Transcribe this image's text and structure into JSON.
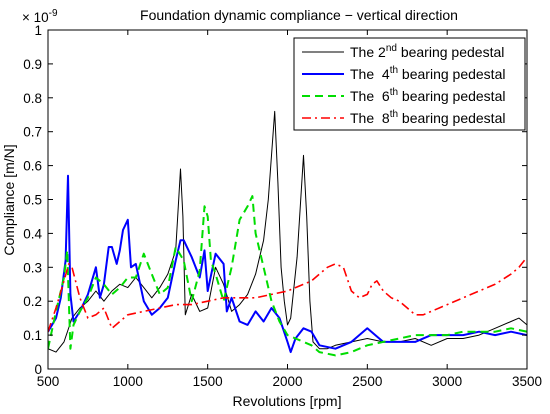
{
  "chart_data": {
    "type": "line",
    "title": "Foundation dynamic compliance − vertical direction",
    "xlabel": "Revolutions [rpm]",
    "ylabel": "Compliance [m/N]",
    "y_exponent": "× 10",
    "y_exponent_power": "-9",
    "xlim": [
      500,
      3500
    ],
    "ylim": [
      0,
      1
    ],
    "xticks": [
      "500",
      "1000",
      "1500",
      "2000",
      "2500",
      "3000",
      "3500"
    ],
    "yticks": [
      "0",
      "0.1",
      "0.2",
      "0.3",
      "0.4",
      "0.5",
      "0.6",
      "0.7",
      "0.8",
      "0.9",
      "1"
    ],
    "grid": false,
    "legend_position": "top-right",
    "legend": [
      {
        "prefix": "The 2",
        "sup": "nd",
        "suffix": " bearing pedestal"
      },
      {
        "prefix": "The  4",
        "sup": "th",
        "suffix": " bearing pedestal"
      },
      {
        "prefix": "The  6",
        "sup": "th",
        "suffix": " bearing pedestal"
      },
      {
        "prefix": "The  8",
        "sup": "th",
        "suffix": " bearing pedestal"
      }
    ],
    "series": [
      {
        "name": "The 2nd bearing pedestal",
        "color": "#000000",
        "dash": "solid",
        "width": 1,
        "x": [
          500,
          550,
          600,
          650,
          700,
          750,
          800,
          850,
          900,
          950,
          1000,
          1050,
          1100,
          1150,
          1200,
          1250,
          1300,
          1330,
          1345,
          1360,
          1400,
          1450,
          1500,
          1550,
          1600,
          1650,
          1700,
          1750,
          1800,
          1850,
          1880,
          1900,
          1920,
          1940,
          1960,
          1980,
          2000,
          2020,
          2060,
          2080,
          2100,
          2120,
          2140,
          2160,
          2200,
          2250,
          2300,
          2400,
          2500,
          2600,
          2700,
          2800,
          2900,
          3000,
          3100,
          3200,
          3300,
          3400,
          3450,
          3500
        ],
        "y": [
          0.06,
          0.05,
          0.08,
          0.15,
          0.18,
          0.2,
          0.23,
          0.2,
          0.23,
          0.25,
          0.24,
          0.27,
          0.24,
          0.21,
          0.24,
          0.28,
          0.35,
          0.59,
          0.45,
          0.16,
          0.22,
          0.17,
          0.18,
          0.3,
          0.25,
          0.17,
          0.19,
          0.22,
          0.28,
          0.38,
          0.5,
          0.63,
          0.76,
          0.55,
          0.3,
          0.2,
          0.13,
          0.15,
          0.33,
          0.48,
          0.63,
          0.45,
          0.2,
          0.08,
          0.06,
          0.06,
          0.07,
          0.08,
          0.09,
          0.08,
          0.08,
          0.09,
          0.07,
          0.09,
          0.09,
          0.1,
          0.12,
          0.14,
          0.15,
          0.13
        ]
      },
      {
        "name": "The 4th bearing pedestal",
        "color": "#0000ff",
        "dash": "solid",
        "width": 2,
        "x": [
          500,
          550,
          580,
          610,
          625,
          640,
          660,
          700,
          750,
          800,
          825,
          850,
          880,
          900,
          930,
          950,
          970,
          1000,
          1020,
          1050,
          1100,
          1150,
          1200,
          1250,
          1300,
          1330,
          1350,
          1400,
          1450,
          1480,
          1500,
          1550,
          1600,
          1620,
          1650,
          1700,
          1750,
          1800,
          1850,
          1900,
          1950,
          2000,
          2020,
          2050,
          2100,
          2150,
          2200,
          2300,
          2400,
          2500,
          2550,
          2600,
          2700,
          2800,
          2900,
          3000,
          3100,
          3200,
          3300,
          3400,
          3500
        ],
        "y": [
          0.11,
          0.15,
          0.21,
          0.32,
          0.57,
          0.22,
          0.14,
          0.17,
          0.22,
          0.3,
          0.21,
          0.25,
          0.36,
          0.36,
          0.31,
          0.35,
          0.41,
          0.44,
          0.3,
          0.31,
          0.2,
          0.16,
          0.18,
          0.21,
          0.32,
          0.38,
          0.38,
          0.33,
          0.27,
          0.35,
          0.23,
          0.34,
          0.31,
          0.17,
          0.21,
          0.14,
          0.13,
          0.17,
          0.14,
          0.18,
          0.15,
          0.08,
          0.05,
          0.09,
          0.12,
          0.11,
          0.07,
          0.06,
          0.08,
          0.12,
          0.1,
          0.08,
          0.08,
          0.08,
          0.1,
          0.1,
          0.1,
          0.11,
          0.1,
          0.11,
          0.1
        ]
      },
      {
        "name": "The 6th bearing pedestal",
        "color": "#00dd00",
        "dash": "dashed",
        "width": 2,
        "x": [
          500,
          550,
          600,
          620,
          640,
          660,
          700,
          750,
          800,
          850,
          900,
          950,
          1000,
          1050,
          1100,
          1150,
          1200,
          1250,
          1300,
          1350,
          1400,
          1450,
          1480,
          1500,
          1520,
          1550,
          1600,
          1650,
          1700,
          1750,
          1780,
          1800,
          1850,
          1900,
          1950,
          2000,
          2050,
          2100,
          2150,
          2200,
          2300,
          2400,
          2500,
          2600,
          2700,
          2800,
          2900,
          3000,
          3100,
          3200,
          3300,
          3400,
          3500
        ],
        "y": [
          0.06,
          0.17,
          0.27,
          0.35,
          0.06,
          0.13,
          0.17,
          0.21,
          0.27,
          0.25,
          0.22,
          0.24,
          0.27,
          0.27,
          0.34,
          0.28,
          0.22,
          0.24,
          0.36,
          0.32,
          0.2,
          0.29,
          0.48,
          0.45,
          0.32,
          0.28,
          0.2,
          0.3,
          0.44,
          0.48,
          0.51,
          0.4,
          0.3,
          0.2,
          0.14,
          0.1,
          0.09,
          0.08,
          0.07,
          0.05,
          0.04,
          0.05,
          0.07,
          0.08,
          0.09,
          0.1,
          0.1,
          0.1,
          0.11,
          0.11,
          0.11,
          0.12,
          0.11
        ]
      },
      {
        "name": "The 8th bearing pedestal",
        "color": "#ff0000",
        "dash": "dashdot",
        "width": 1.6,
        "x": [
          500,
          550,
          600,
          630,
          650,
          700,
          750,
          800,
          850,
          900,
          950,
          1000,
          1100,
          1200,
          1300,
          1400,
          1500,
          1600,
          1700,
          1800,
          1900,
          2000,
          2050,
          2100,
          2150,
          2200,
          2250,
          2300,
          2350,
          2400,
          2450,
          2500,
          2530,
          2560,
          2600,
          2650,
          2700,
          2750,
          2800,
          2850,
          2900,
          2950,
          3000,
          3100,
          3200,
          3300,
          3400,
          3450,
          3500
        ],
        "y": [
          0.11,
          0.18,
          0.26,
          0.31,
          0.3,
          0.21,
          0.15,
          0.16,
          0.18,
          0.12,
          0.14,
          0.16,
          0.17,
          0.18,
          0.19,
          0.19,
          0.2,
          0.21,
          0.21,
          0.21,
          0.22,
          0.23,
          0.24,
          0.25,
          0.26,
          0.28,
          0.3,
          0.31,
          0.3,
          0.23,
          0.21,
          0.22,
          0.25,
          0.26,
          0.23,
          0.21,
          0.2,
          0.18,
          0.16,
          0.16,
          0.17,
          0.18,
          0.19,
          0.21,
          0.23,
          0.25,
          0.28,
          0.3,
          0.33
        ]
      }
    ]
  }
}
